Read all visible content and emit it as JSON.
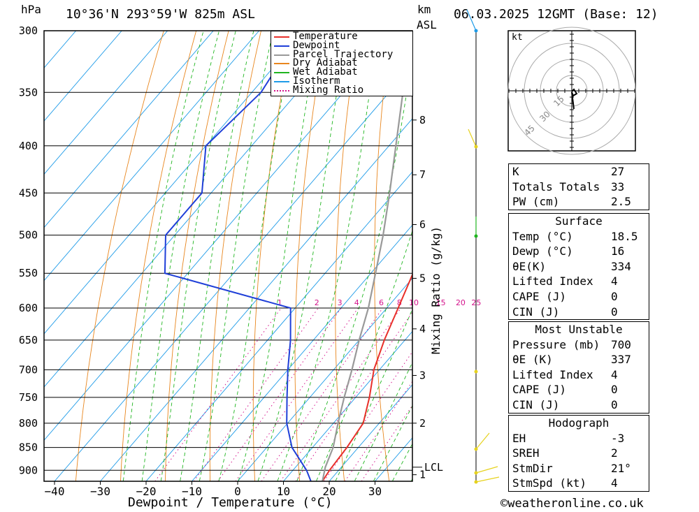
{
  "header": {
    "left_unit": "hPa",
    "location": "10°36'N  293°59'W  825m  ASL",
    "right_unit_top": "km",
    "right_unit_bottom": "ASL",
    "datetime": "06.03.2025  12GMT  (Base: 12)"
  },
  "footer": {
    "copyright": "©weatheronline.co.uk"
  },
  "chart_data": {
    "type": "line",
    "subtype": "skew-T log-P diagram",
    "xlabel": "Dewpoint / Temperature (°C)",
    "ylabel": "hPa",
    "ylabel_right": "Mixing Ratio (g/kg)",
    "x_ticks": [
      -40,
      -30,
      -20,
      -10,
      0,
      10,
      20,
      30
    ],
    "pressure_levels": [
      300,
      350,
      400,
      450,
      500,
      550,
      600,
      650,
      700,
      750,
      800,
      850,
      900
    ],
    "height_ticks_km": [
      {
        "label": "8",
        "p": 375
      },
      {
        "label": "7",
        "p": 430
      },
      {
        "label": "6",
        "p": 487
      },
      {
        "label": "5",
        "p": 557
      },
      {
        "label": "4",
        "p": 632
      },
      {
        "label": "3",
        "p": 710
      },
      {
        "label": "2",
        "p": 800
      },
      {
        "label": "1",
        "p": 910
      }
    ],
    "lcl_label": "LCL",
    "lcl_pressure": 893,
    "mixing_ratio_labels": [
      "1",
      "2",
      "3",
      "4",
      "6",
      "8",
      "10",
      "15",
      "20",
      "25"
    ],
    "mixing_ratio_values": [
      1,
      2,
      3,
      4,
      6,
      8,
      10,
      15,
      20,
      25
    ],
    "legend": [
      "Temperature",
      "Dewpoint",
      "Parcel Trajectory",
      "Dry Adiabat",
      "Wet Adiabat",
      "Isotherm",
      "Mixing Ratio"
    ],
    "legend_position": "top-right",
    "series": [
      {
        "name": "Temperature",
        "color": "#e8302a",
        "points": [
          [
            925,
            18.5
          ],
          [
            900,
            18
          ],
          [
            850,
            17.5
          ],
          [
            800,
            16.5
          ],
          [
            750,
            13
          ],
          [
            700,
            8.8
          ],
          [
            650,
            5.5
          ],
          [
            600,
            2.5
          ],
          [
            550,
            -0.8
          ],
          [
            500,
            -6.5
          ],
          [
            450,
            -12.5
          ],
          [
            400,
            -19.5
          ],
          [
            360,
            -25.5
          ]
        ]
      },
      {
        "name": "Dewpoint",
        "color": "#1f3fd8",
        "points": [
          [
            925,
            16
          ],
          [
            900,
            13
          ],
          [
            850,
            5.5
          ],
          [
            800,
            -0.2
          ],
          [
            750,
            -5
          ],
          [
            700,
            -10
          ],
          [
            650,
            -15
          ],
          [
            600,
            -21
          ],
          [
            550,
            -55
          ],
          [
            500,
            -62
          ],
          [
            450,
            -62
          ],
          [
            400,
            -70
          ],
          [
            350,
            -68
          ],
          [
            300,
            -71
          ]
        ]
      },
      {
        "name": "Parcel Trajectory",
        "color": "#999999",
        "points": [
          [
            925,
            18.5
          ],
          [
            893,
            16.5
          ],
          [
            850,
            14.5
          ],
          [
            800,
            11
          ],
          [
            750,
            7.5
          ],
          [
            700,
            4
          ],
          [
            650,
            0
          ],
          [
            600,
            -4
          ],
          [
            550,
            -9
          ],
          [
            500,
            -14.5
          ],
          [
            450,
            -21
          ],
          [
            400,
            -28.5
          ],
          [
            350,
            -37
          ],
          [
            300,
            -47
          ]
        ]
      }
    ],
    "colors": {
      "temperature": "#e8302a",
      "dewpoint": "#1f3fd8",
      "parcel": "#999999",
      "dry_adiabat": "#e8861e",
      "wet_adiabat": "#1fb51f",
      "isotherm": "#1e9be8",
      "mixing_ratio": "#d4148c"
    }
  },
  "hodograph": {
    "unit_label": "kt",
    "ring_labels": [
      "15",
      "30",
      "45"
    ]
  },
  "indices": {
    "rows": [
      {
        "k": "K",
        "v": "27"
      },
      {
        "k": "Totals Totals",
        "v": "33"
      },
      {
        "k": "PW (cm)",
        "v": "2.5"
      }
    ]
  },
  "surface": {
    "title": "Surface",
    "rows": [
      {
        "k": "Temp (°C)",
        "v": "18.5"
      },
      {
        "k": "Dewp (°C)",
        "v": "16"
      },
      {
        "k": "θE(K)",
        "v": "334"
      },
      {
        "k": "Lifted Index",
        "v": "4"
      },
      {
        "k": "CAPE (J)",
        "v": "0"
      },
      {
        "k": "CIN (J)",
        "v": "0"
      }
    ]
  },
  "most_unstable": {
    "title": "Most Unstable",
    "rows": [
      {
        "k": "Pressure (mb)",
        "v": "700"
      },
      {
        "k": "θE (K)",
        "v": "337"
      },
      {
        "k": "Lifted Index",
        "v": "4"
      },
      {
        "k": "CAPE (J)",
        "v": "0"
      },
      {
        "k": "CIN (J)",
        "v": "0"
      }
    ]
  },
  "hodograph_stats": {
    "title": "Hodograph",
    "rows": [
      {
        "k": "EH",
        "v": "-3"
      },
      {
        "k": "SREH",
        "v": "2"
      },
      {
        "k": "StmDir",
        "v": "21°"
      },
      {
        "k": "StmSpd (kt)",
        "v": "4"
      }
    ]
  }
}
